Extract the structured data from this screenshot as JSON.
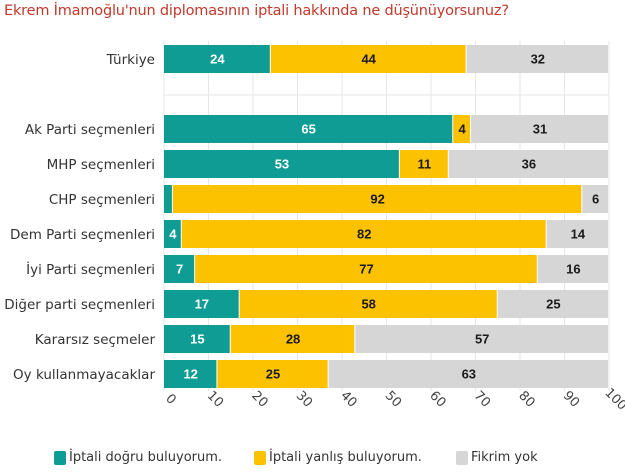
{
  "chart_data": {
    "type": "bar",
    "orientation": "horizontal",
    "stacked": true,
    "title": "Ekrem İmamoğlu'nun diplomasının iptali hakkında ne düşünüyorsunuz?",
    "categories": [
      "Türkiye",
      "Ak Parti seçmenleri",
      "MHP seçmenleri",
      "CHP seçmenleri",
      "Dem Parti seçmenleri",
      "İyi Parti seçmenleri",
      "Diğer parti seçmenleri",
      "Kararsız seçmeler",
      "Oy kullanmayacaklar"
    ],
    "series": [
      {
        "name": "İptali doğru buluyorum.",
        "color": "#0e9c94",
        "values": [
          24,
          65,
          53,
          2,
          4,
          7,
          17,
          15,
          12
        ],
        "labels": [
          "24",
          "65",
          "53",
          "",
          "4",
          "7",
          "17",
          "15",
          "12"
        ]
      },
      {
        "name": "İptali yanlış buluyorum.",
        "color": "#fcc200",
        "values": [
          44,
          4,
          11,
          92,
          82,
          77,
          58,
          28,
          25
        ],
        "labels": [
          "44",
          "4",
          "11",
          "92",
          "82",
          "77",
          "58",
          "28",
          "25"
        ]
      },
      {
        "name": "Fikrim yok",
        "color": "#d6d6d6",
        "values": [
          32,
          31,
          36,
          6,
          14,
          16,
          25,
          57,
          63
        ],
        "labels": [
          "32",
          "31",
          "36",
          "6",
          "14",
          "16",
          "25",
          "57",
          "63"
        ]
      }
    ],
    "xlim": [
      0,
      100
    ],
    "xticks": [
      "0",
      "10",
      "20",
      "30",
      "40",
      "50",
      "60",
      "70",
      "80",
      "90",
      "100"
    ],
    "grid": true,
    "legend": "bottom"
  }
}
